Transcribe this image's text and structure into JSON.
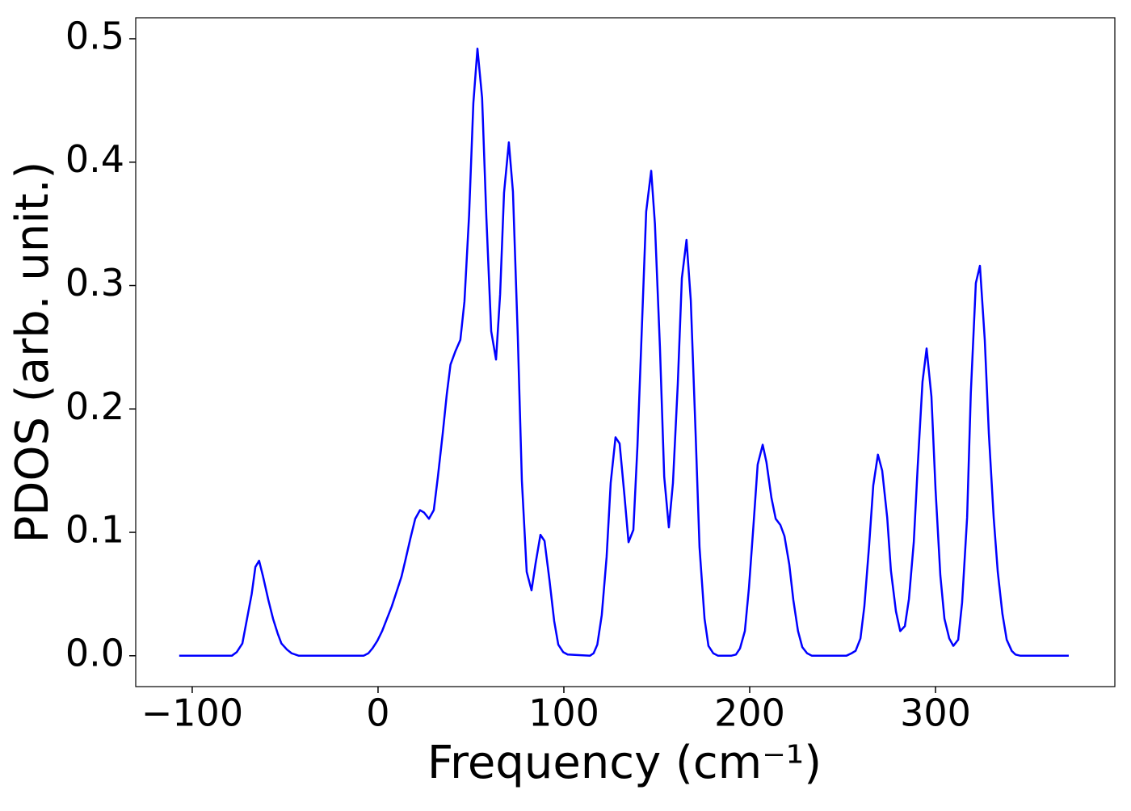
{
  "chart_data": {
    "type": "line",
    "xlabel": "Frequency (cm⁻¹)",
    "ylabel": "PDOS (arb. unit.)",
    "color": "#0000ff",
    "xlim": [
      -130.4,
      396.5
    ],
    "ylim": [
      -0.025,
      0.517
    ],
    "xticks": [
      {
        "value": -100,
        "label": "−100"
      },
      0,
      100,
      200,
      300
    ],
    "yticks": [
      {
        "value": 0,
        "label": "0.0"
      },
      0.1,
      0.2,
      0.3,
      0.4,
      0.5
    ],
    "x": [
      -107,
      -78.7,
      -76,
      -73,
      -71,
      -68,
      -66,
      -64,
      -62,
      -59,
      -56.5,
      -54,
      -52,
      -49,
      -46.5,
      -42.6,
      -7.8,
      -5.2,
      -3,
      -0.4,
      2.2,
      4.8,
      7.4,
      10,
      12.6,
      14.8,
      17.4,
      20,
      22.6,
      24.8,
      27.4,
      30,
      32.2,
      34.8,
      37,
      39,
      41.7,
      44.3,
      46.5,
      49,
      51.3,
      53.5,
      56,
      58.3,
      60.9,
      63.5,
      65.7,
      67.8,
      70.4,
      72.6,
      75.2,
      77.4,
      80,
      82.6,
      84.8,
      87.4,
      89.6,
      92.2,
      94.8,
      97,
      99.6,
      102,
      114,
      116,
      118,
      120.4,
      123,
      125.2,
      127.8,
      130,
      132.6,
      134.8,
      137.4,
      139.6,
      142.2,
      144.3,
      147,
      149,
      151.7,
      154,
      156.5,
      158.7,
      161.3,
      163.5,
      166,
      168.3,
      170.9,
      173,
      175.7,
      177.8,
      180.4,
      183,
      190,
      192.6,
      194.8,
      197.4,
      199.6,
      202,
      204.3,
      207,
      209,
      211.7,
      214,
      216.5,
      218.7,
      221.3,
      223.5,
      226,
      228.3,
      230.9,
      233.5,
      252,
      254.8,
      257,
      259.6,
      261.7,
      264.3,
      266.5,
      269,
      271.3,
      274,
      276,
      278.7,
      281,
      283.5,
      285.7,
      288.3,
      290.4,
      293,
      295.2,
      297.8,
      300,
      302.6,
      304.8,
      307.4,
      309.6,
      312.2,
      314.3,
      317,
      319,
      321.7,
      323.9,
      326.5,
      328.7,
      331.3,
      333.5,
      336,
      338.3,
      341,
      343,
      345.7,
      371.7
    ],
    "values": [
      0,
      0,
      0.003,
      0.01,
      0.026,
      0.05,
      0.072,
      0.077,
      0.065,
      0.045,
      0.03,
      0.018,
      0.01,
      0.005,
      0.002,
      0,
      0,
      0.002,
      0.006,
      0.012,
      0.02,
      0.03,
      0.04,
      0.052,
      0.064,
      0.078,
      0.095,
      0.111,
      0.118,
      0.116,
      0.111,
      0.118,
      0.145,
      0.18,
      0.212,
      0.236,
      0.247,
      0.256,
      0.287,
      0.357,
      0.448,
      0.492,
      0.452,
      0.355,
      0.263,
      0.24,
      0.293,
      0.375,
      0.416,
      0.376,
      0.259,
      0.142,
      0.068,
      0.053,
      0.075,
      0.098,
      0.093,
      0.062,
      0.028,
      0.009,
      0.003,
      0.001,
      0,
      0.002,
      0.009,
      0.033,
      0.08,
      0.14,
      0.177,
      0.172,
      0.13,
      0.092,
      0.102,
      0.17,
      0.275,
      0.36,
      0.393,
      0.35,
      0.25,
      0.145,
      0.104,
      0.14,
      0.22,
      0.306,
      0.337,
      0.288,
      0.18,
      0.088,
      0.03,
      0.008,
      0.002,
      0,
      0,
      0.001,
      0.006,
      0.02,
      0.055,
      0.105,
      0.155,
      0.171,
      0.157,
      0.128,
      0.111,
      0.106,
      0.097,
      0.074,
      0.045,
      0.02,
      0.007,
      0.002,
      0,
      0,
      0.002,
      0.004,
      0.014,
      0.04,
      0.09,
      0.138,
      0.163,
      0.15,
      0.112,
      0.069,
      0.036,
      0.02,
      0.024,
      0.046,
      0.092,
      0.153,
      0.222,
      0.249,
      0.21,
      0.135,
      0.065,
      0.03,
      0.014,
      0.008,
      0.013,
      0.043,
      0.112,
      0.213,
      0.302,
      0.316,
      0.256,
      0.18,
      0.112,
      0.068,
      0.034,
      0.013,
      0.004,
      0.001,
      0,
      0
    ]
  }
}
